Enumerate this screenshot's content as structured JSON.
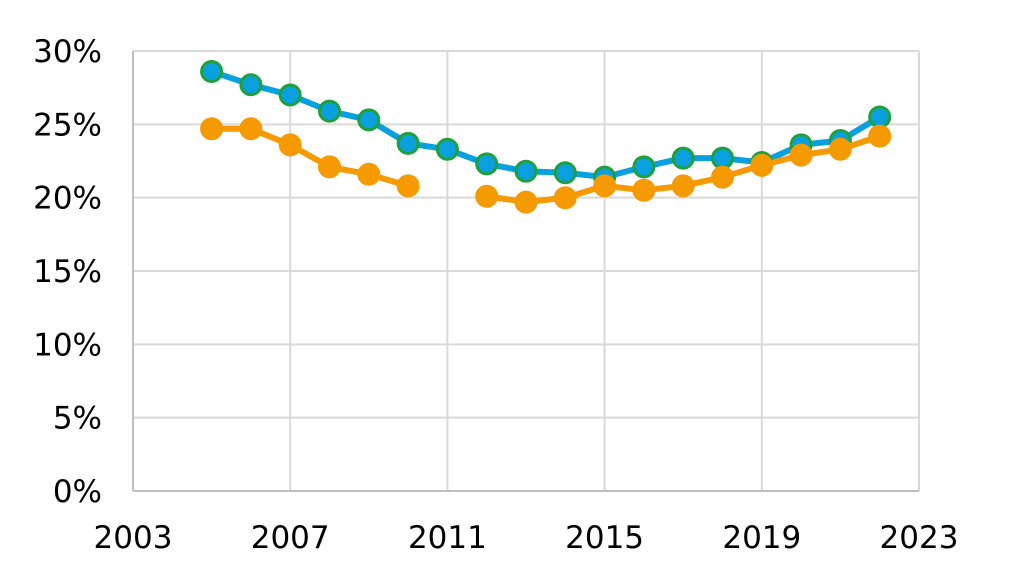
{
  "chart_data": {
    "type": "line",
    "title": "",
    "xlabel": "",
    "ylabel": "",
    "xlim": [
      2003,
      2023
    ],
    "ylim": [
      0,
      30
    ],
    "x_ticks": [
      2003,
      2007,
      2011,
      2015,
      2019,
      2023
    ],
    "x_tick_labels": [
      "2003",
      "2007",
      "2011",
      "2015",
      "2019",
      "2023"
    ],
    "y_ticks": [
      0,
      5,
      10,
      15,
      20,
      25,
      30
    ],
    "y_tick_labels": [
      "0%",
      "5%",
      "10%",
      "15%",
      "20%",
      "25%",
      "30%"
    ],
    "grid": true,
    "legend": "none",
    "series": [
      {
        "line_color": "#0aa0e0",
        "marker_fill": "#0aa0e0",
        "marker_edge": "#1ea03c",
        "x": [
          2005,
          2006,
          2007,
          2008,
          2009,
          2010,
          2011,
          2012,
          2013,
          2014,
          2015,
          2016,
          2017,
          2018,
          2019,
          2020,
          2021,
          2022
        ],
        "values": [
          28.6,
          27.7,
          27.0,
          25.9,
          25.3,
          23.7,
          23.3,
          22.3,
          21.8,
          21.7,
          21.4,
          22.1,
          22.7,
          22.7,
          22.4,
          23.6,
          23.9,
          25.5
        ]
      },
      {
        "line_color": "#f59a00",
        "marker_fill": "#f59a00",
        "marker_edge": "#f59a00",
        "x": [
          2005,
          2006,
          2007,
          2008,
          2009,
          2010,
          2011,
          2012,
          2013,
          2014,
          2015,
          2016,
          2017,
          2018,
          2019,
          2020,
          2021,
          2022
        ],
        "values": [
          24.7,
          24.7,
          23.6,
          22.1,
          21.6,
          20.8,
          null,
          20.1,
          19.7,
          20.0,
          20.8,
          20.5,
          20.8,
          21.4,
          22.2,
          22.9,
          23.3,
          24.2
        ]
      }
    ]
  }
}
